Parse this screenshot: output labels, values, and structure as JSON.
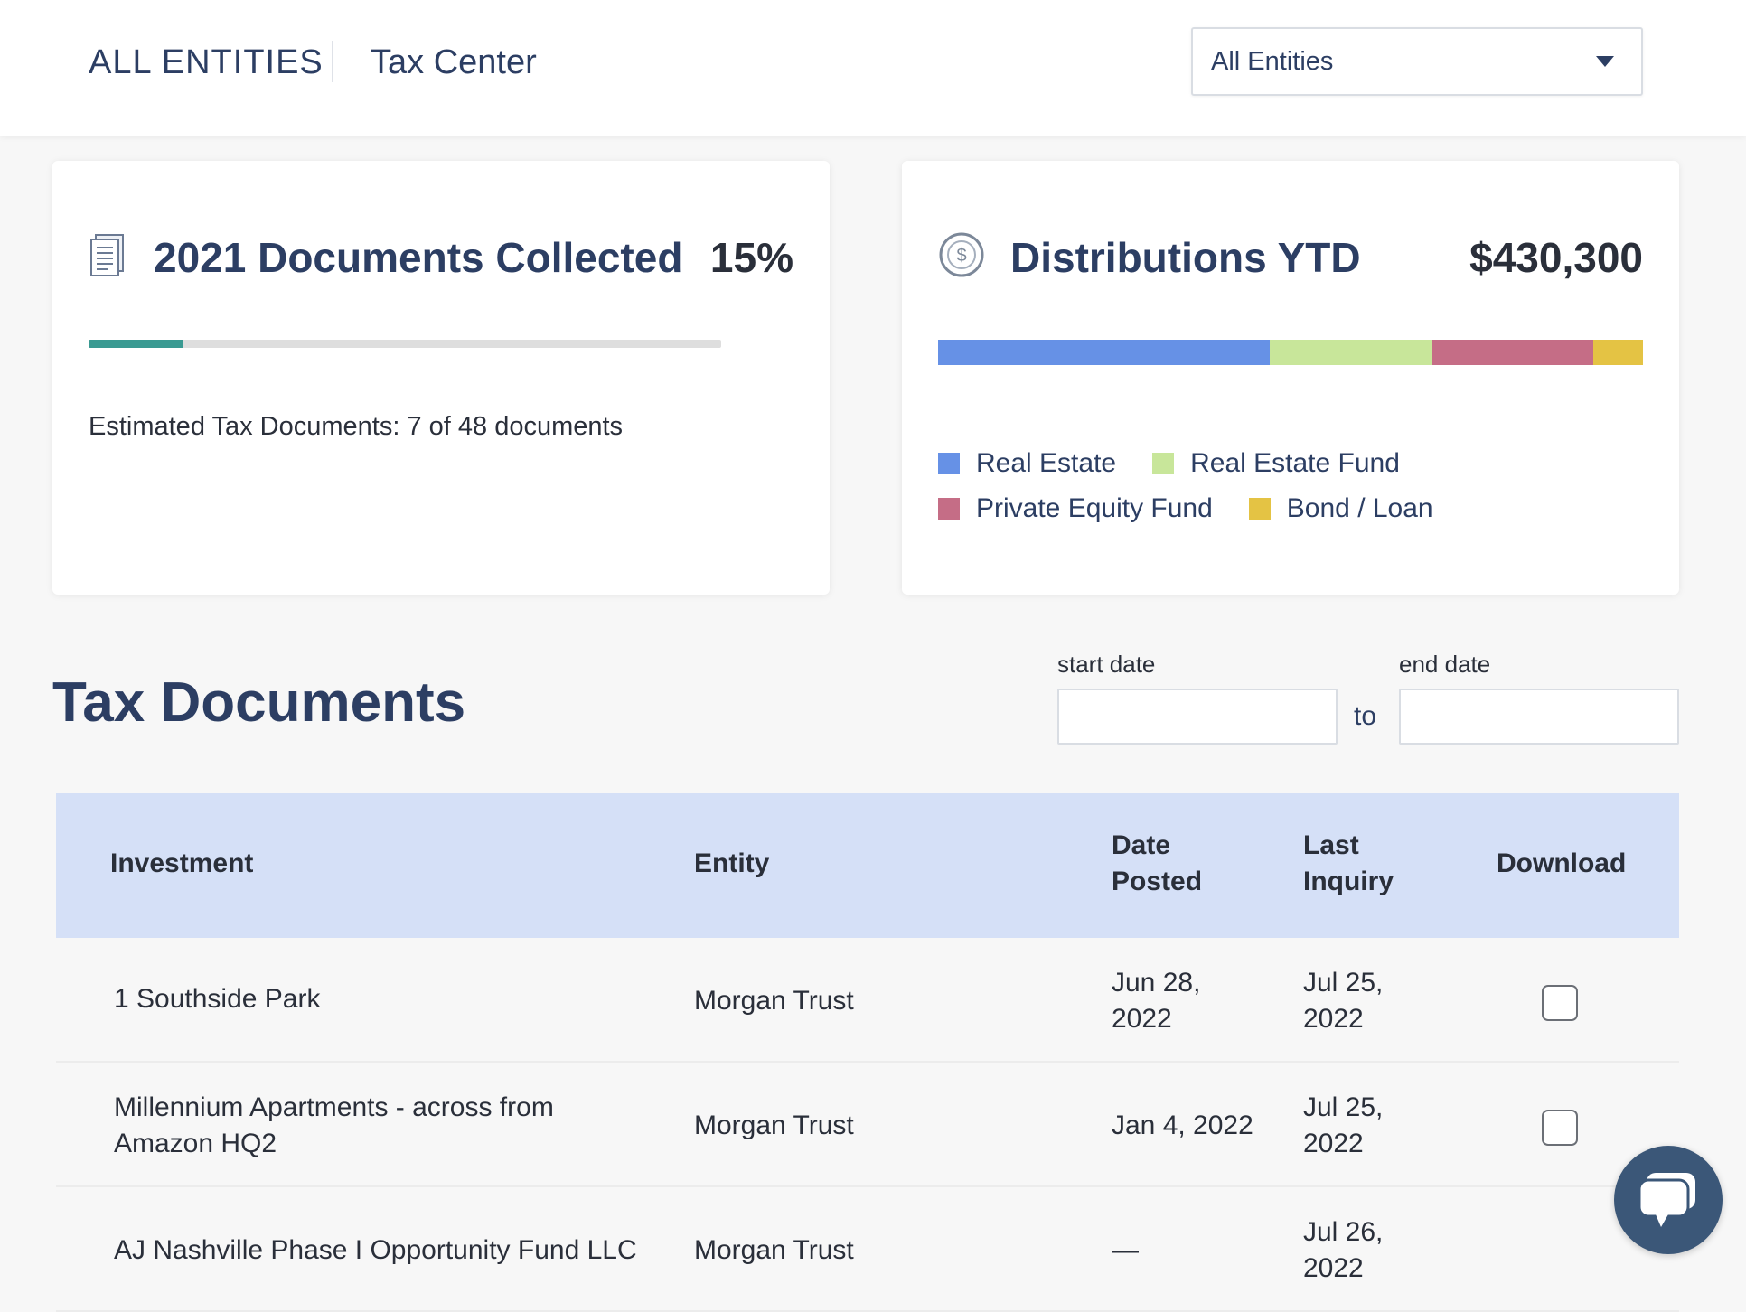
{
  "header": {
    "breadcrumb_root": "ALL ENTITIES",
    "breadcrumb_page": "Tax Center",
    "entity_select": {
      "selected": "All Entities"
    }
  },
  "documents_card": {
    "icon": "document-icon",
    "title": "2021 Documents Collected",
    "percent_label": "15%",
    "progress_fraction": 0.15,
    "note": "Estimated Tax Documents: 7 of 48 documents",
    "accent": "#3a9a92"
  },
  "distributions_card": {
    "icon": "dollar-coin-icon",
    "title": "Distributions YTD",
    "total": "$430,300",
    "segments": [
      {
        "label": "Real Estate",
        "color": "#6691e6",
        "fraction": 0.47
      },
      {
        "label": "Real Estate Fund",
        "color": "#c8e69a",
        "fraction": 0.23
      },
      {
        "label": "Private Equity Fund",
        "color": "#c56d86",
        "fraction": 0.23
      },
      {
        "label": "Bond / Loan",
        "color": "#e4c344",
        "fraction": 0.07
      }
    ]
  },
  "tax_documents": {
    "title": "Tax Documents",
    "start_date": {
      "label": "start date",
      "value": ""
    },
    "end_date": {
      "label": "end date",
      "value": ""
    },
    "to_label": "to",
    "columns": {
      "investment": "Investment",
      "entity": "Entity",
      "date_posted_1": "Date",
      "date_posted_2": "Posted",
      "last_inquiry_1": "Last",
      "last_inquiry_2": "Inquiry",
      "download": "Download"
    },
    "rows": [
      {
        "investment_1": "1 Southside Park",
        "investment_2": "",
        "entity": "Morgan Trust",
        "date_posted_1": "Jun 28,",
        "date_posted_2": "2022",
        "last_inquiry_1": "Jul 25,",
        "last_inquiry_2": "2022"
      },
      {
        "investment_1": "Millennium Apartments - across from",
        "investment_2": "Amazon HQ2",
        "entity": "Morgan Trust",
        "date_posted_1": "Jan 4, 2022",
        "date_posted_2": "",
        "last_inquiry_1": "Jul 25,",
        "last_inquiry_2": "2022"
      },
      {
        "investment_1": "AJ Nashville Phase I Opportunity Fund LLC",
        "investment_2": "",
        "entity": "Morgan Trust",
        "date_posted_1": "—",
        "date_posted_2": "",
        "last_inquiry_1": "Jul 26,",
        "last_inquiry_2": "2022"
      }
    ]
  },
  "chat": {
    "icon": "chat-bubble-icon"
  }
}
